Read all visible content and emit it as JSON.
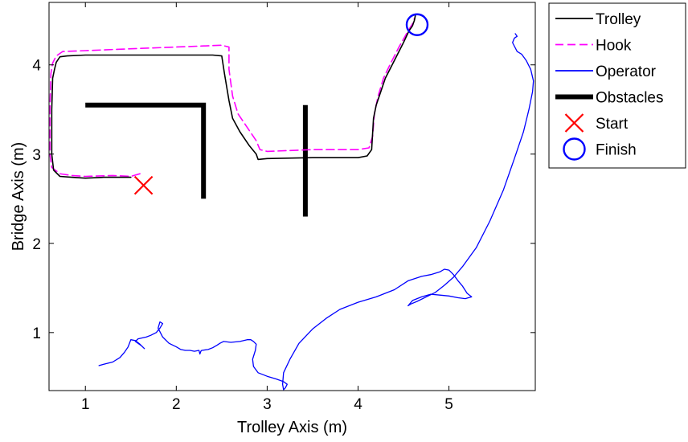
{
  "chart_data": {
    "type": "line",
    "title": "",
    "xlabel": "Trolley Axis (m)",
    "ylabel": "Bridge Axis (m)",
    "xlim": [
      0.6,
      5.95
    ],
    "ylim": [
      0.35,
      4.7
    ],
    "xticks": [
      1,
      2,
      3,
      4,
      5
    ],
    "yticks": [
      1,
      2,
      3,
      4
    ],
    "grid": false,
    "legend_position": "outside-top-right",
    "series": [
      {
        "name": "Trolley",
        "color": "#000000",
        "style": "solid",
        "x": [
          1.5,
          1.4,
          1.2,
          1.0,
          0.85,
          0.72,
          0.65,
          0.63,
          0.63,
          0.64,
          0.66,
          0.68,
          0.72,
          0.8,
          1.0,
          1.5,
          2.0,
          2.4,
          2.5,
          2.53,
          2.58,
          2.62,
          2.7,
          2.8,
          2.88,
          2.9,
          3.0,
          3.5,
          4.0,
          4.1,
          4.15,
          4.17,
          4.2,
          4.25,
          4.3,
          4.4,
          4.5,
          4.56,
          4.6,
          4.62,
          4.63
        ],
        "y": [
          2.74,
          2.74,
          2.74,
          2.73,
          2.74,
          2.75,
          2.82,
          3.0,
          3.5,
          3.85,
          3.95,
          4.03,
          4.09,
          4.1,
          4.11,
          4.11,
          4.11,
          4.11,
          4.1,
          3.9,
          3.6,
          3.4,
          3.25,
          3.1,
          3.0,
          2.94,
          2.95,
          2.96,
          2.96,
          2.98,
          3.05,
          3.4,
          3.55,
          3.7,
          3.85,
          4.05,
          4.25,
          4.38,
          4.44,
          4.5,
          4.55
        ]
      },
      {
        "name": "Hook",
        "color": "#ff00ff",
        "style": "dashed",
        "x": [
          1.6,
          1.5,
          1.3,
          1.0,
          0.85,
          0.72,
          0.63,
          0.61,
          0.61,
          0.62,
          0.64,
          0.68,
          0.75,
          1.0,
          1.5,
          2.0,
          2.5,
          2.58,
          2.58,
          2.62,
          2.68,
          2.78,
          2.88,
          2.92,
          3.0,
          3.5,
          4.0,
          4.12,
          4.16,
          4.18,
          4.22,
          4.28,
          4.35,
          4.45,
          4.55,
          4.6,
          4.62
        ],
        "y": [
          2.78,
          2.75,
          2.76,
          2.75,
          2.76,
          2.78,
          2.85,
          3.0,
          3.5,
          3.9,
          4.02,
          4.1,
          4.15,
          4.16,
          4.18,
          4.2,
          4.22,
          4.2,
          3.95,
          3.65,
          3.45,
          3.3,
          3.15,
          3.05,
          3.03,
          3.05,
          3.05,
          3.07,
          3.2,
          3.45,
          3.65,
          3.85,
          4.0,
          4.2,
          4.38,
          4.46,
          4.52
        ]
      },
      {
        "name": "Operator",
        "color": "#0000ff",
        "style": "solid",
        "x": [
          1.15,
          1.22,
          1.3,
          1.38,
          1.43,
          1.47,
          1.5,
          1.55,
          1.6,
          1.65,
          1.62,
          1.55,
          1.58,
          1.67,
          1.72,
          1.78,
          1.82,
          1.85,
          1.82,
          1.8,
          1.85,
          1.92,
          2.0,
          2.05,
          2.1,
          2.15,
          2.2,
          2.25,
          2.26,
          2.27,
          2.28,
          2.35,
          2.4,
          2.45,
          2.48,
          2.52,
          2.6,
          2.7,
          2.78,
          2.82,
          2.85,
          2.88,
          2.87,
          2.84,
          2.85,
          2.9,
          3.0,
          3.1,
          3.18,
          3.22,
          3.2,
          3.18,
          3.17,
          3.18,
          3.25,
          3.35,
          3.5,
          3.65,
          3.8,
          4.0,
          4.2,
          4.4,
          4.55,
          4.7,
          4.8,
          4.9,
          4.95,
          5.0,
          5.05,
          5.1,
          5.15,
          5.2,
          5.25,
          5.18,
          5.1,
          5.0,
          4.9,
          4.8,
          4.7,
          4.6,
          4.55,
          4.58,
          4.65,
          4.75,
          4.85,
          4.95,
          5.05,
          5.15,
          5.3,
          5.45,
          5.6,
          5.72,
          5.82,
          5.88,
          5.92,
          5.93,
          5.9,
          5.85,
          5.8,
          5.75,
          5.7,
          5.72,
          5.75,
          5.73
        ],
        "y": [
          0.63,
          0.65,
          0.67,
          0.72,
          0.78,
          0.84,
          0.92,
          0.91,
          0.87,
          0.82,
          0.85,
          0.9,
          0.93,
          0.95,
          0.97,
          1.0,
          1.05,
          1.1,
          1.12,
          1.05,
          0.95,
          0.88,
          0.84,
          0.81,
          0.8,
          0.8,
          0.79,
          0.8,
          0.76,
          0.79,
          0.8,
          0.81,
          0.83,
          0.86,
          0.88,
          0.9,
          0.89,
          0.9,
          0.92,
          0.92,
          0.9,
          0.87,
          0.8,
          0.7,
          0.62,
          0.55,
          0.51,
          0.48,
          0.45,
          0.42,
          0.38,
          0.36,
          0.42,
          0.55,
          0.7,
          0.88,
          1.04,
          1.16,
          1.26,
          1.34,
          1.4,
          1.48,
          1.58,
          1.63,
          1.65,
          1.68,
          1.71,
          1.7,
          1.65,
          1.58,
          1.52,
          1.44,
          1.4,
          1.38,
          1.39,
          1.41,
          1.42,
          1.43,
          1.4,
          1.36,
          1.3,
          1.32,
          1.35,
          1.4,
          1.45,
          1.53,
          1.62,
          1.74,
          1.95,
          2.25,
          2.6,
          2.95,
          3.25,
          3.5,
          3.7,
          3.82,
          3.95,
          4.05,
          4.12,
          4.15,
          4.25,
          4.3,
          4.32,
          4.35
        ]
      },
      {
        "name": "Obstacles",
        "color": "#000000",
        "style": "thick",
        "segments": [
          {
            "x": [
              1.0,
              2.3,
              2.3
            ],
            "y": [
              3.55,
              3.55,
              2.5
            ]
          },
          {
            "x": [
              3.42,
              3.42
            ],
            "y": [
              3.55,
              2.3
            ]
          }
        ]
      },
      {
        "name": "Start",
        "color": "#ff0000",
        "marker": "x",
        "x": [
          1.64
        ],
        "y": [
          2.65
        ]
      },
      {
        "name": "Finish",
        "color": "#0000ff",
        "marker": "circle",
        "x": [
          4.65
        ],
        "y": [
          4.45
        ]
      }
    ]
  }
}
